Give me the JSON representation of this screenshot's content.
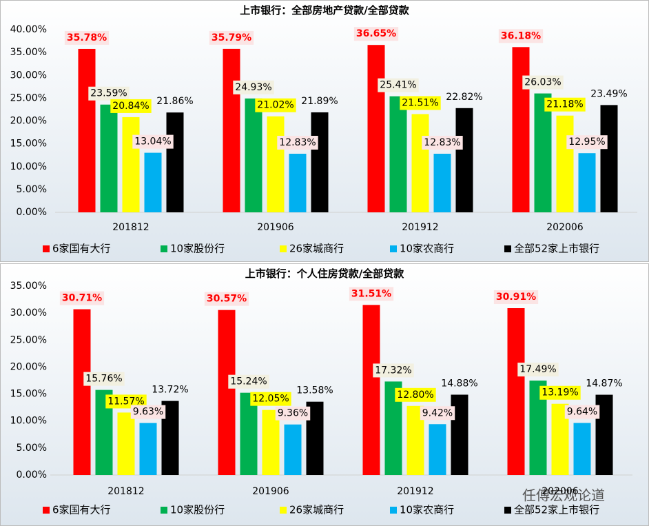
{
  "chart_data": [
    {
      "type": "bar",
      "title": "上市银行：全部房地产贷款/全部贷款",
      "categories": [
        "201812",
        "201906",
        "201912",
        "202006"
      ],
      "series": [
        {
          "name": "6家国有大行",
          "color": "#ff0000",
          "label_background": "#fbe4e4",
          "values": [
            35.78,
            35.79,
            36.65,
            36.18
          ],
          "value_labels": [
            "35.78%",
            "35.79%",
            "36.65%",
            "36.18%"
          ]
        },
        {
          "name": "10家股份行",
          "color": "#00b050",
          "label_background": "#f2f0e0",
          "values": [
            23.59,
            24.93,
            25.41,
            26.03
          ],
          "value_labels": [
            "23.59%",
            "24.93%",
            "25.41%",
            "26.03%"
          ]
        },
        {
          "name": "26家城商行",
          "color": "#ffff00",
          "label_background": "#ffff00",
          "values": [
            20.84,
            21.02,
            21.51,
            21.18
          ],
          "value_labels": [
            "20.84%",
            "21.02%",
            "21.51%",
            "21.18%"
          ]
        },
        {
          "name": "10家农商行",
          "color": "#00b0f0",
          "label_background": "#fbe4e4",
          "values": [
            13.04,
            12.83,
            12.83,
            12.95
          ],
          "value_labels": [
            "13.04%",
            "12.83%",
            "12.83%",
            "12.95%"
          ]
        },
        {
          "name": "全部52家上市银行",
          "color": "#000000",
          "label_background": null,
          "values": [
            21.86,
            21.89,
            22.82,
            23.49
          ],
          "value_labels": [
            "21.86%",
            "21.89%",
            "22.82%",
            "23.49%"
          ]
        }
      ],
      "ylim": [
        0,
        40
      ],
      "yticks": [
        {
          "value": 0,
          "label": "0.00%"
        },
        {
          "value": 5,
          "label": "5.00%"
        },
        {
          "value": 10,
          "label": "10.00%"
        },
        {
          "value": 15,
          "label": "15.00%"
        },
        {
          "value": 20,
          "label": "20.00%"
        },
        {
          "value": 25,
          "label": "25.00%"
        },
        {
          "value": 30,
          "label": "30.00%"
        },
        {
          "value": 35,
          "label": "35.00%"
        },
        {
          "value": 40,
          "label": "40.00%"
        }
      ],
      "grid": false,
      "legend": "bottom"
    },
    {
      "type": "bar",
      "title": "上市银行：个人住房贷款/全部贷款",
      "categories": [
        "201812",
        "201906",
        "201912",
        "202006"
      ],
      "series": [
        {
          "name": "6家国有大行",
          "color": "#ff0000",
          "label_background": "#fbe4e4",
          "values": [
            30.71,
            30.57,
            31.51,
            30.91
          ],
          "value_labels": [
            "30.71%",
            "30.57%",
            "31.51%",
            "30.91%"
          ]
        },
        {
          "name": "10家股份行",
          "color": "#00b050",
          "label_background": "#f2f0e0",
          "values": [
            15.76,
            15.24,
            17.32,
            17.49
          ],
          "value_labels": [
            "15.76%",
            "15.24%",
            "17.32%",
            "17.49%"
          ]
        },
        {
          "name": "26家城商行",
          "color": "#ffff00",
          "label_background": "#ffff00",
          "values": [
            11.57,
            12.05,
            12.8,
            13.19
          ],
          "value_labels": [
            "11.57%",
            "12.05%",
            "12.80%",
            "13.19%"
          ]
        },
        {
          "name": "10家农商行",
          "color": "#00b0f0",
          "label_background": "#fbe4e4",
          "values": [
            9.63,
            9.36,
            9.42,
            9.64
          ],
          "value_labels": [
            "9.63%",
            "9.36%",
            "9.42%",
            "9.64%"
          ]
        },
        {
          "name": "全部52家上市银行",
          "color": "#000000",
          "label_background": null,
          "values": [
            13.72,
            13.58,
            14.88,
            14.87
          ],
          "value_labels": [
            "13.72%",
            "13.58%",
            "14.88%",
            "14.87%"
          ]
        }
      ],
      "ylim": [
        0,
        35
      ],
      "yticks": [
        {
          "value": 0,
          "label": "0.00%"
        },
        {
          "value": 5,
          "label": "5.00%"
        },
        {
          "value": 10,
          "label": "10.00%"
        },
        {
          "value": 15,
          "label": "15.00%"
        },
        {
          "value": 20,
          "label": "20.00%"
        },
        {
          "value": 25,
          "label": "25.00%"
        },
        {
          "value": 30,
          "label": "30.00%"
        },
        {
          "value": 35,
          "label": "35.00%"
        }
      ],
      "grid": false,
      "legend": "bottom"
    }
  ],
  "watermark": "任傅宏观论道"
}
